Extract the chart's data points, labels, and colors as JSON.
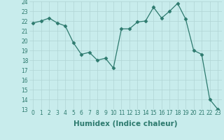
{
  "x": [
    0,
    1,
    2,
    3,
    4,
    5,
    6,
    7,
    8,
    9,
    10,
    11,
    12,
    13,
    14,
    15,
    16,
    17,
    18,
    19,
    20,
    21,
    22,
    23
  ],
  "y": [
    21.8,
    22.0,
    22.3,
    21.8,
    21.5,
    19.8,
    18.6,
    18.8,
    18.0,
    18.2,
    17.2,
    21.2,
    21.2,
    21.9,
    22.0,
    23.4,
    22.3,
    23.0,
    23.8,
    22.2,
    19.0,
    18.6,
    14.0,
    13.0
  ],
  "line_color": "#2d7a6e",
  "marker": "D",
  "marker_size": 2.5,
  "bg_color": "#c8ecec",
  "grid_color": "#b0d4d4",
  "xlabel": "Humidex (Indice chaleur)",
  "ylim": [
    13,
    24
  ],
  "xlim": [
    -0.5,
    23.5
  ],
  "yticks": [
    13,
    14,
    15,
    16,
    17,
    18,
    19,
    20,
    21,
    22,
    23,
    24
  ],
  "xticks": [
    0,
    1,
    2,
    3,
    4,
    5,
    6,
    7,
    8,
    9,
    10,
    11,
    12,
    13,
    14,
    15,
    16,
    17,
    18,
    19,
    20,
    21,
    22,
    23
  ],
  "tick_fontsize": 5.5,
  "xlabel_fontsize": 7.5
}
